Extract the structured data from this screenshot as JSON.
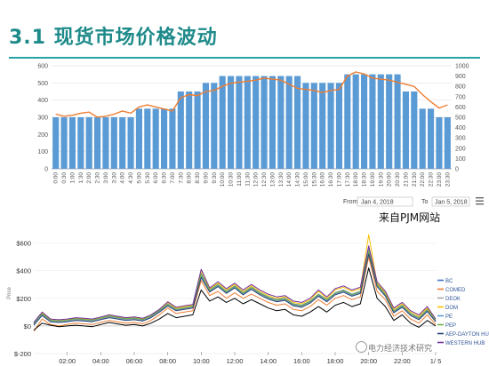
{
  "slide": {
    "title": "3.1 现货市场价格波动",
    "source_note": "来自PJM网站",
    "watermark": "电力经济技术研究"
  },
  "range_controls": {
    "from_label": "From",
    "from_value": "Jan 4, 2018",
    "to_label": "To",
    "to_value": "Jan 5, 2018",
    "menu_icon": "hamburger-menu-icon"
  },
  "chart_data": [
    {
      "type": "bar",
      "categories": [
        "0:00",
        "0:30",
        "1:00",
        "1:30",
        "2:00",
        "2:30",
        "3:00",
        "3:30",
        "4:00",
        "4:30",
        "5:00",
        "5:30",
        "6:00",
        "6:30",
        "7:00",
        "7:30",
        "8:00",
        "8:30",
        "9:00",
        "9:30",
        "10:00",
        "10:30",
        "11:00",
        "11:30",
        "12:00",
        "12:30",
        "13:00",
        "13:30",
        "14:00",
        "14:30",
        "15:00",
        "15:30",
        "16:00",
        "16:30",
        "17:00",
        "17:30",
        "18:00",
        "18:30",
        "19:00",
        "19:30",
        "20:00",
        "20:30",
        "21:00",
        "21:30",
        "22:00",
        "22:30",
        "23:00",
        "23:30"
      ],
      "series": [
        {
          "values": [
            300,
            300,
            300,
            300,
            300,
            300,
            300,
            300,
            300,
            300,
            350,
            350,
            350,
            350,
            350,
            450,
            450,
            450,
            500,
            500,
            540,
            540,
            540,
            540,
            540,
            540,
            540,
            540,
            540,
            540,
            500,
            500,
            500,
            500,
            500,
            550,
            550,
            550,
            550,
            550,
            550,
            550,
            450,
            450,
            350,
            350,
            300,
            300
          ],
          "axis": "left",
          "color": "#5b9bd5"
        },
        {
          "values": [
            530,
            510,
            520,
            540,
            550,
            500,
            510,
            530,
            560,
            540,
            600,
            620,
            600,
            580,
            560,
            690,
            720,
            710,
            750,
            760,
            800,
            830,
            840,
            850,
            860,
            880,
            870,
            860,
            820,
            780,
            770,
            760,
            740,
            760,
            770,
            900,
            940,
            920,
            880,
            870,
            860,
            840,
            820,
            800,
            720,
            650,
            590,
            620
          ],
          "axis": "right",
          "type": "line",
          "color": "#ed7d31"
        }
      ],
      "ylim": [
        0,
        600
      ],
      "y2lim": [
        0,
        1000
      ],
      "yticks": [
        0,
        100,
        200,
        300,
        400,
        500,
        600
      ],
      "y2ticks": [
        0,
        100,
        200,
        300,
        400,
        500,
        600,
        700,
        800,
        900,
        1000
      ],
      "grid": true
    },
    {
      "type": "line",
      "ylabel": "Price",
      "x_tick_labels": [
        "02:00",
        "04:00",
        "06:00",
        "08:00",
        "10:00",
        "12:00",
        "14:00",
        "16:00",
        "18:00",
        "20:00",
        "22:00",
        "1/ 5"
      ],
      "y_tick_labels": [
        "$600",
        "$400",
        "$200",
        "$0",
        "$-200"
      ],
      "ylim": [
        -200,
        700
      ],
      "yticks": [
        600,
        400,
        200,
        0,
        -200
      ],
      "xlim": [
        0,
        24
      ],
      "x_tick_positions": [
        2,
        4,
        6,
        8,
        10,
        12,
        14,
        16,
        18,
        20,
        22,
        24
      ],
      "x": [
        0,
        0.5,
        1,
        1.5,
        2,
        2.5,
        3,
        3.5,
        4,
        4.5,
        5,
        5.5,
        6,
        6.5,
        7,
        7.5,
        8,
        8.5,
        9,
        9.5,
        10,
        10.5,
        11,
        11.5,
        12,
        12.5,
        13,
        13.5,
        14,
        14.5,
        15,
        15.5,
        16,
        16.5,
        17,
        17.5,
        18,
        18.5,
        19,
        19.5,
        20,
        20.5,
        21,
        21.5,
        22,
        22.5,
        23,
        23.5,
        24
      ],
      "legend_position": "right",
      "series": [
        {
          "name": "BC",
          "color": "#4472c4",
          "values": [
            20,
            90,
            40,
            35,
            40,
            50,
            45,
            40,
            55,
            70,
            60,
            50,
            55,
            45,
            70,
            110,
            160,
            120,
            130,
            140,
            380,
            260,
            300,
            250,
            290,
            240,
            280,
            240,
            210,
            190,
            200,
            160,
            150,
            180,
            230,
            190,
            240,
            260,
            230,
            250,
            560,
            300,
            230,
            110,
            150,
            90,
            60,
            120,
            40
          ]
        },
        {
          "name": "COMED",
          "color": "#ed7d31",
          "values": [
            -40,
            50,
            10,
            0,
            10,
            20,
            15,
            10,
            25,
            40,
            30,
            20,
            25,
            15,
            40,
            80,
            130,
            90,
            100,
            110,
            330,
            220,
            250,
            200,
            240,
            200,
            230,
            200,
            170,
            150,
            160,
            120,
            110,
            140,
            190,
            150,
            200,
            220,
            190,
            210,
            500,
            250,
            190,
            70,
            110,
            50,
            20,
            80,
            10
          ]
        },
        {
          "name": "DEOK",
          "color": "#a5a5a5",
          "values": [
            10,
            80,
            35,
            30,
            35,
            45,
            40,
            35,
            50,
            65,
            55,
            45,
            50,
            40,
            65,
            105,
            150,
            115,
            125,
            135,
            370,
            250,
            290,
            240,
            280,
            230,
            270,
            230,
            200,
            180,
            190,
            150,
            140,
            170,
            220,
            180,
            230,
            250,
            220,
            240,
            550,
            290,
            220,
            100,
            140,
            80,
            50,
            110,
            35
          ]
        },
        {
          "name": "DOM",
          "color": "#ffc000",
          "values": [
            20,
            95,
            45,
            40,
            45,
            55,
            50,
            45,
            60,
            75,
            65,
            55,
            60,
            50,
            75,
            115,
            170,
            130,
            140,
            150,
            400,
            270,
            310,
            260,
            300,
            250,
            290,
            250,
            220,
            200,
            210,
            170,
            160,
            190,
            250,
            200,
            260,
            280,
            250,
            270,
            660,
            310,
            240,
            120,
            160,
            100,
            70,
            130,
            45
          ]
        },
        {
          "name": "PE",
          "color": "#5b9bd5",
          "values": [
            15,
            85,
            40,
            35,
            40,
            50,
            45,
            40,
            55,
            70,
            60,
            50,
            55,
            45,
            70,
            110,
            155,
            120,
            130,
            140,
            360,
            255,
            295,
            245,
            285,
            235,
            275,
            235,
            205,
            185,
            195,
            155,
            145,
            175,
            225,
            185,
            235,
            255,
            225,
            245,
            540,
            295,
            225,
            105,
            145,
            85,
            55,
            115,
            40
          ]
        },
        {
          "name": "PEP",
          "color": "#70ad47",
          "values": [
            18,
            88,
            42,
            37,
            42,
            52,
            47,
            42,
            57,
            72,
            62,
            52,
            57,
            47,
            72,
            112,
            158,
            122,
            132,
            142,
            375,
            258,
            298,
            248,
            288,
            238,
            278,
            238,
            208,
            188,
            198,
            158,
            148,
            178,
            228,
            188,
            238,
            258,
            228,
            248,
            545,
            298,
            228,
            108,
            148,
            88,
            58,
            118,
            42
          ]
        },
        {
          "name": "AEP-DAYTON HUB",
          "color": "#264478",
          "values": [
            5,
            75,
            30,
            25,
            30,
            40,
            35,
            30,
            45,
            60,
            50,
            40,
            45,
            35,
            60,
            100,
            145,
            110,
            120,
            130,
            350,
            245,
            285,
            235,
            275,
            225,
            265,
            225,
            195,
            175,
            185,
            145,
            135,
            165,
            215,
            175,
            225,
            245,
            215,
            235,
            520,
            285,
            215,
            95,
            135,
            75,
            45,
            105,
            30
          ]
        },
        {
          "name": "WESTERN HUB",
          "color": "#7030a0",
          "values": [
            25,
            100,
            50,
            45,
            50,
            60,
            55,
            50,
            65,
            80,
            70,
            60,
            65,
            55,
            80,
            120,
            175,
            135,
            145,
            155,
            410,
            275,
            320,
            270,
            310,
            260,
            300,
            260,
            230,
            210,
            220,
            180,
            170,
            200,
            260,
            210,
            270,
            290,
            260,
            280,
            580,
            320,
            250,
            130,
            170,
            110,
            80,
            140,
            50
          ]
        },
        {
          "name": "",
          "color": "#000000",
          "values": [
            -30,
            20,
            5,
            -5,
            0,
            5,
            0,
            -5,
            10,
            25,
            15,
            5,
            10,
            0,
            20,
            50,
            90,
            60,
            70,
            80,
            260,
            180,
            210,
            170,
            200,
            160,
            190,
            160,
            130,
            110,
            120,
            80,
            70,
            100,
            140,
            100,
            150,
            170,
            140,
            160,
            420,
            200,
            140,
            40,
            80,
            20,
            -10,
            40,
            0
          ]
        }
      ]
    }
  ]
}
